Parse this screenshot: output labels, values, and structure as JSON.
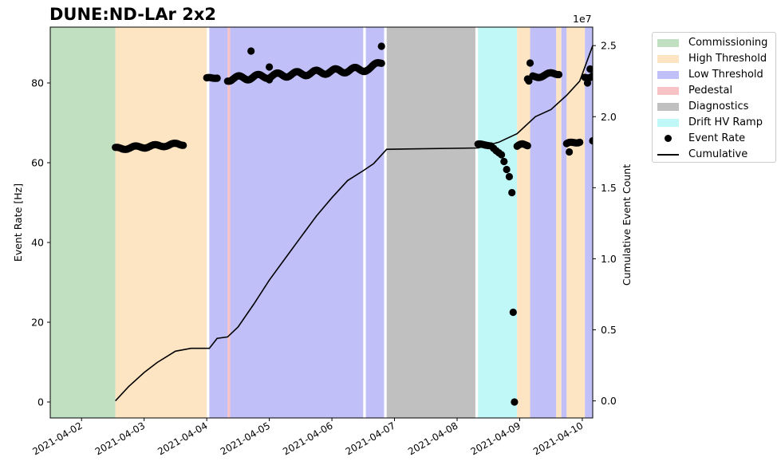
{
  "title": "DUNE:ND-LAr 2x2",
  "right_axis_exponent": "1e7",
  "chart_data": {
    "type": "scatter",
    "title": "DUNE:ND-LAr 2x2",
    "xlabel": "",
    "ylabel": "Event Rate [Hz]",
    "y2label": "Cumulative Event Count",
    "xlim": [
      "2021-04-01T12:00",
      "2021-04-10T04:00"
    ],
    "ylim": [
      -4,
      94
    ],
    "y2lim": [
      -0.12,
      2.63
    ],
    "y2_scale": "1e7",
    "x_ticks": [
      "2021-04-02",
      "2021-04-03",
      "2021-04-04",
      "2021-04-05",
      "2021-04-06",
      "2021-04-07",
      "2021-04-08",
      "2021-04-09",
      "2021-04-10"
    ],
    "y_ticks": [
      0,
      20,
      40,
      60,
      80
    ],
    "y2_ticks": [
      "0.0",
      "0.5",
      "1.0",
      "1.5",
      "2.0",
      "2.5"
    ],
    "grid": false,
    "legend_position": "outside-right",
    "legend": [
      "Commissioning",
      "High Threshold",
      "Low Threshold",
      "Pedestal",
      "Diagnostics",
      "Drift HV Ramp",
      "Event Rate",
      "Cumulative"
    ],
    "state_colors": {
      "Commissioning": "#c1e0c1",
      "High Threshold": "#fde4c2",
      "Low Threshold": "#c0bff8",
      "Pedestal": "#f7c3c4",
      "Diagnostics": "#c0c0c0",
      "Drift HV Ramp": "#c0f8f8"
    },
    "regions": [
      {
        "state": "Commissioning",
        "start": "2021-04-01T12:00",
        "end": "2021-04-02T13:00"
      },
      {
        "state": "High Threshold",
        "start": "2021-04-02T13:00",
        "end": "2021-04-04T00:00"
      },
      {
        "state": "Low Threshold",
        "start": "2021-04-04T01:00",
        "end": "2021-04-04T08:00"
      },
      {
        "state": "Pedestal",
        "start": "2021-04-04T08:00",
        "end": "2021-04-04T09:00"
      },
      {
        "state": "Low Threshold",
        "start": "2021-04-04T09:00",
        "end": "2021-04-06T12:00"
      },
      {
        "state": "Low Threshold",
        "start": "2021-04-06T13:00",
        "end": "2021-04-06T20:00"
      },
      {
        "state": "Diagnostics",
        "start": "2021-04-06T21:00",
        "end": "2021-04-08T07:00"
      },
      {
        "state": "Drift HV Ramp",
        "start": "2021-04-08T08:00",
        "end": "2021-04-08T23:00"
      },
      {
        "state": "High Threshold",
        "start": "2021-04-08T23:00",
        "end": "2021-04-09T04:00"
      },
      {
        "state": "Low Threshold",
        "start": "2021-04-09T04:00",
        "end": "2021-04-09T14:00"
      },
      {
        "state": "High Threshold",
        "start": "2021-04-09T14:00",
        "end": "2021-04-09T16:00"
      },
      {
        "state": "Low Threshold",
        "start": "2021-04-09T16:00",
        "end": "2021-04-09T18:00"
      },
      {
        "state": "High Threshold",
        "start": "2021-04-09T18:00",
        "end": "2021-04-10T01:00"
      },
      {
        "state": "Low Threshold",
        "start": "2021-04-10T01:00",
        "end": "2021-04-10T04:00"
      }
    ],
    "event_rate_segments": [
      {
        "start": "2021-04-02T13:00",
        "end": "2021-04-03T15:00",
        "from": 63.5,
        "to": 64.7,
        "jitter": 0.35
      },
      {
        "start": "2021-04-04T00:00",
        "end": "2021-04-04T04:00",
        "from": 81.0,
        "to": 81.5,
        "jitter": 0.3
      },
      {
        "start": "2021-04-04T08:00",
        "end": "2021-04-06T13:00",
        "from": 81.0,
        "to": 83.5,
        "jitter": 0.6
      },
      {
        "start": "2021-04-06T13:00",
        "end": "2021-04-06T19:00",
        "from": 83.5,
        "to": 85.0,
        "jitter": 0.5
      },
      {
        "start": "2021-04-08T08:00",
        "end": "2021-04-08T12:00",
        "from": 64.5,
        "to": 64.5,
        "jitter": 0.2
      },
      {
        "start": "2021-04-08T23:00",
        "end": "2021-04-09T03:00",
        "from": 64.0,
        "to": 64.5,
        "jitter": 0.5
      },
      {
        "start": "2021-04-09T05:00",
        "end": "2021-04-09T15:00",
        "from": 81.5,
        "to": 82.5,
        "jitter": 0.4
      },
      {
        "start": "2021-04-09T18:00",
        "end": "2021-04-09T23:00",
        "from": 64.5,
        "to": 65.5,
        "jitter": 0.4
      },
      {
        "start": "2021-04-10T01:00",
        "end": "2021-04-10T04:00",
        "from": 81.5,
        "to": 82.0,
        "jitter": 0.5
      }
    ],
    "event_rate_points": [
      {
        "x": "2021-04-04T17:00",
        "y": 88.0
      },
      {
        "x": "2021-04-05T00:00",
        "y": 84.0
      },
      {
        "x": "2021-04-05T00:00",
        "y": 80.8
      },
      {
        "x": "2021-04-06T19:00",
        "y": 89.2
      },
      {
        "x": "2021-04-08T13:00",
        "y": 64.2
      },
      {
        "x": "2021-04-08T14:00",
        "y": 63.6
      },
      {
        "x": "2021-04-08T15:00",
        "y": 63.0
      },
      {
        "x": "2021-04-08T16:00",
        "y": 62.5
      },
      {
        "x": "2021-04-08T17:00",
        "y": 62.0
      },
      {
        "x": "2021-04-08T18:00",
        "y": 60.3
      },
      {
        "x": "2021-04-08T19:00",
        "y": 58.3
      },
      {
        "x": "2021-04-08T20:00",
        "y": 56.5
      },
      {
        "x": "2021-04-08T21:00",
        "y": 52.5
      },
      {
        "x": "2021-04-08T21:30",
        "y": 22.5
      },
      {
        "x": "2021-04-08T22:00",
        "y": 0.0
      },
      {
        "x": "2021-04-09T03:00",
        "y": 81.0
      },
      {
        "x": "2021-04-09T03:30",
        "y": 80.5
      },
      {
        "x": "2021-04-09T04:00",
        "y": 85.0
      },
      {
        "x": "2021-04-09T19:00",
        "y": 62.7
      },
      {
        "x": "2021-04-10T02:00",
        "y": 80.0
      },
      {
        "x": "2021-04-10T03:00",
        "y": 83.5
      },
      {
        "x": "2021-04-10T04:00",
        "y": 65.5
      }
    ],
    "cumulative": [
      {
        "x": "2021-04-02T13:00",
        "y": 0.0
      },
      {
        "x": "2021-04-02T18:00",
        "y": 0.1
      },
      {
        "x": "2021-04-03T00:00",
        "y": 0.2
      },
      {
        "x": "2021-04-03T05:00",
        "y": 0.27
      },
      {
        "x": "2021-04-03T12:00",
        "y": 0.35
      },
      {
        "x": "2021-04-03T18:00",
        "y": 0.37
      },
      {
        "x": "2021-04-04T01:00",
        "y": 0.37
      },
      {
        "x": "2021-04-04T04:00",
        "y": 0.44
      },
      {
        "x": "2021-04-04T08:00",
        "y": 0.45
      },
      {
        "x": "2021-04-04T12:00",
        "y": 0.52
      },
      {
        "x": "2021-04-04T18:00",
        "y": 0.68
      },
      {
        "x": "2021-04-05T00:00",
        "y": 0.85
      },
      {
        "x": "2021-04-05T06:00",
        "y": 1.0
      },
      {
        "x": "2021-04-05T12:00",
        "y": 1.15
      },
      {
        "x": "2021-04-05T18:00",
        "y": 1.3
      },
      {
        "x": "2021-04-06T00:00",
        "y": 1.43
      },
      {
        "x": "2021-04-06T06:00",
        "y": 1.55
      },
      {
        "x": "2021-04-06T12:00",
        "y": 1.62
      },
      {
        "x": "2021-04-06T16:00",
        "y": 1.67
      },
      {
        "x": "2021-04-06T21:00",
        "y": 1.77
      },
      {
        "x": "2021-04-08T08:00",
        "y": 1.78
      },
      {
        "x": "2021-04-08T16:00",
        "y": 1.82
      },
      {
        "x": "2021-04-08T23:00",
        "y": 1.88
      },
      {
        "x": "2021-04-09T06:00",
        "y": 2.0
      },
      {
        "x": "2021-04-09T12:00",
        "y": 2.05
      },
      {
        "x": "2021-04-09T18:00",
        "y": 2.15
      },
      {
        "x": "2021-04-09T23:00",
        "y": 2.25
      },
      {
        "x": "2021-04-10T04:00",
        "y": 2.5
      }
    ]
  }
}
